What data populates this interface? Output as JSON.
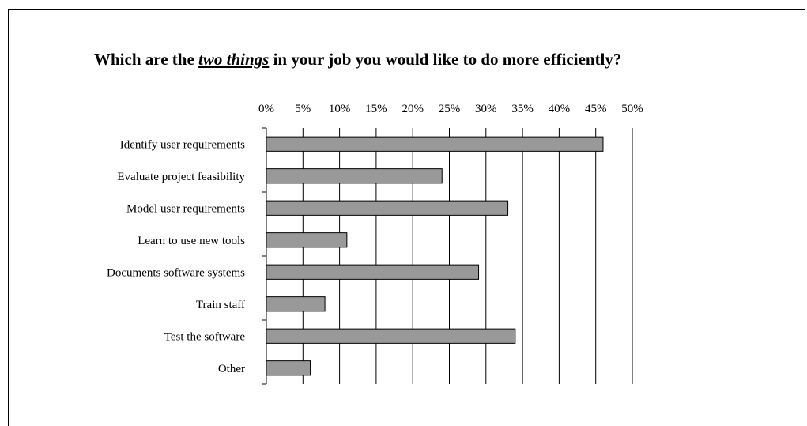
{
  "chart_data": {
    "type": "bar",
    "orientation": "horizontal",
    "title": {
      "before": "Which are the ",
      "emphasis": "two things",
      "after": " in your job you would like to do more efficiently?"
    },
    "categories": [
      "Identify user requirements",
      "Evaluate project feasibility",
      "Model user requirements",
      "Learn to use new tools",
      "Documents software systems",
      "Train staff",
      "Test the software",
      "Other"
    ],
    "values": [
      0.46,
      0.24,
      0.33,
      0.11,
      0.29,
      0.08,
      0.34,
      0.06
    ],
    "xlim": [
      0,
      0.5
    ],
    "x_ticks": [
      "0%",
      "5%",
      "10%",
      "15%",
      "20%",
      "25%",
      "30%",
      "35%",
      "40%",
      "45%",
      "50%"
    ],
    "x_axis_position": "top",
    "grid": true,
    "bar_color": "#999999"
  }
}
